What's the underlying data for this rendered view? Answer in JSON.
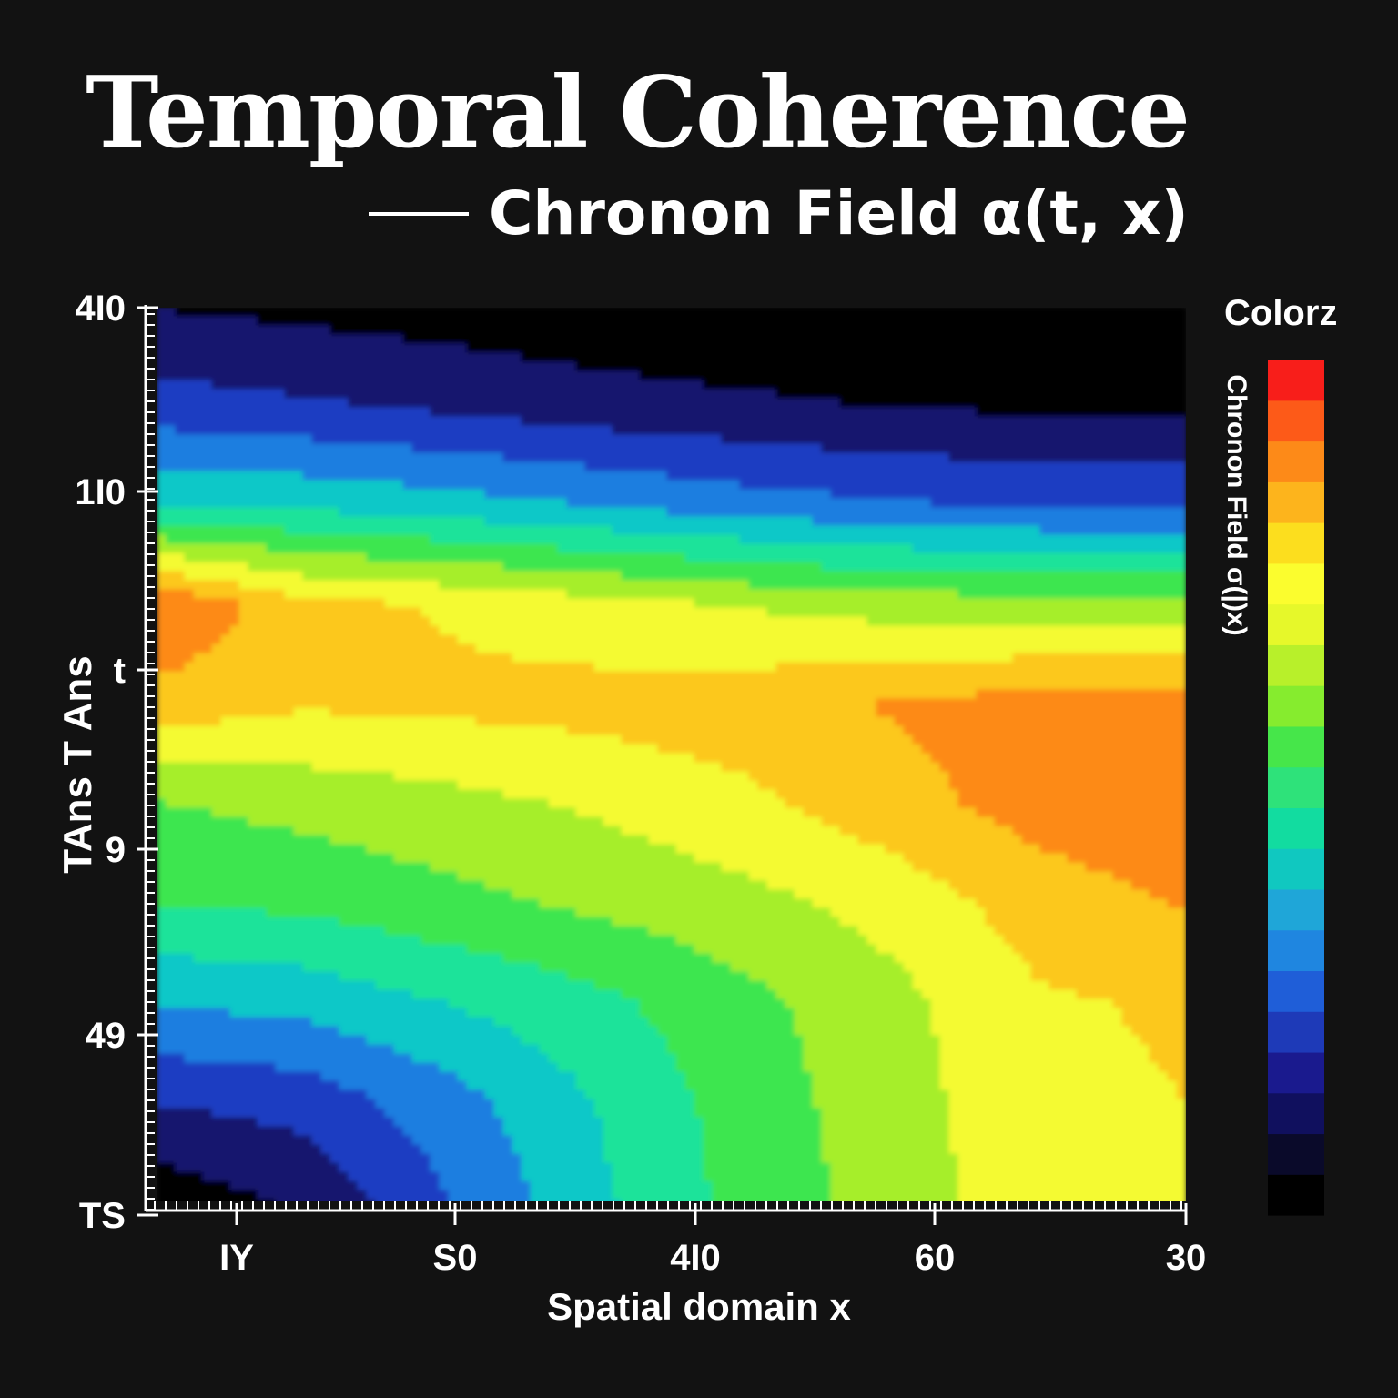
{
  "chart_data": {
    "type": "heatmap",
    "title": "Temporal Coherence",
    "subtitle": "Chronon Field α(t, x)",
    "xlabel": "Spatial domain x",
    "ylabel": "TAns T Ans",
    "x_ticks": [
      "IY",
      "S0",
      "4I0",
      "60",
      "30"
    ],
    "y_ticks": [
      "4I0",
      "1I0",
      "t",
      "9",
      "49",
      "TS"
    ],
    "colorbar": {
      "title": "Colorz",
      "label": "Chronon Field σ(|)x)",
      "colors": [
        "#000000",
        "#0a0a2a",
        "#10105e",
        "#1a1a8e",
        "#1e3ab8",
        "#1f5ed8",
        "#1f86e0",
        "#1fa6d8",
        "#10c8c0",
        "#12dca0",
        "#2ee27a",
        "#46e64a",
        "#86ec2e",
        "#b8f02a",
        "#e6f82a",
        "#fbfd2e",
        "#fcde1e",
        "#fdb41c",
        "#fd8a18",
        "#fd5a18",
        "#f81e1a"
      ]
    },
    "colormap": [
      "#000000",
      "#14146e",
      "#1a3ec2",
      "#1f7ee0",
      "#10c8c8",
      "#1ee39a",
      "#3ee650",
      "#a6ee2a",
      "#f4fa30",
      "#fcc81e",
      "#fd8a18",
      "#f81e1a"
    ],
    "grid": {
      "nx": 8,
      "ny": 10,
      "values": [
        [
          0.08,
          0.06,
          0.04,
          0.02,
          0.0,
          0.0,
          0.0,
          0.0
        ],
        [
          0.2,
          0.18,
          0.15,
          0.12,
          0.1,
          0.08,
          0.07,
          0.07
        ],
        [
          0.42,
          0.4,
          0.37,
          0.33,
          0.29,
          0.26,
          0.24,
          0.24
        ],
        [
          0.92,
          0.78,
          0.74,
          0.7,
          0.66,
          0.63,
          0.62,
          0.62
        ],
        [
          0.8,
          0.76,
          0.77,
          0.78,
          0.8,
          0.84,
          0.87,
          0.88
        ],
        [
          0.58,
          0.61,
          0.64,
          0.68,
          0.73,
          0.8,
          0.87,
          0.9
        ],
        [
          0.5,
          0.52,
          0.56,
          0.6,
          0.64,
          0.7,
          0.79,
          0.84
        ],
        [
          0.34,
          0.36,
          0.42,
          0.48,
          0.56,
          0.64,
          0.74,
          0.76
        ],
        [
          0.17,
          0.2,
          0.3,
          0.42,
          0.54,
          0.63,
          0.73,
          0.75
        ],
        [
          0.03,
          0.1,
          0.25,
          0.4,
          0.53,
          0.62,
          0.72,
          0.73
        ]
      ]
    }
  }
}
